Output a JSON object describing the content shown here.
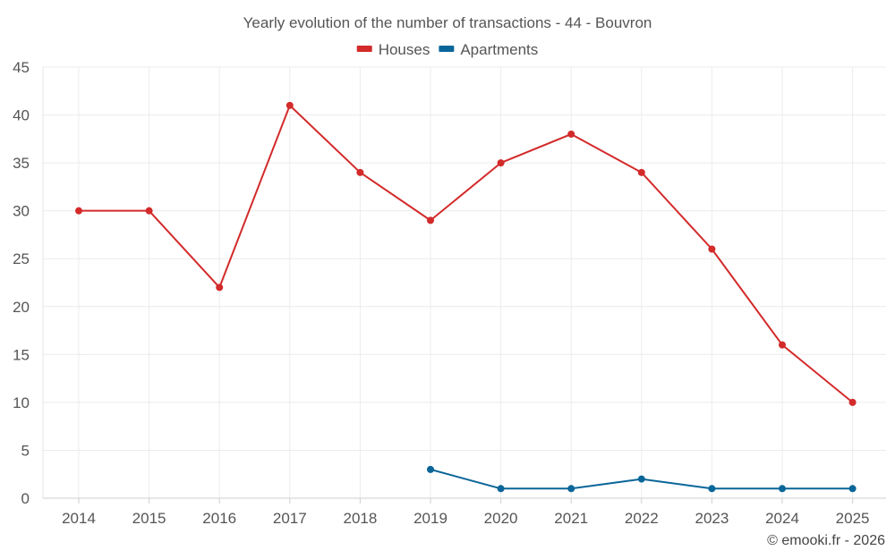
{
  "chart_data": {
    "type": "line",
    "title": "Yearly evolution of the number of transactions - 44 - Bouvron",
    "categories": [
      "2014",
      "2015",
      "2016",
      "2017",
      "2018",
      "2019",
      "2020",
      "2021",
      "2022",
      "2023",
      "2024",
      "2025"
    ],
    "series": [
      {
        "name": "Houses",
        "color": "#d32a2a",
        "values": [
          30,
          30,
          22,
          41,
          34,
          29,
          35,
          38,
          34,
          26,
          16,
          10
        ]
      },
      {
        "name": "Apartments",
        "color": "#0a6699",
        "values": [
          null,
          null,
          null,
          null,
          null,
          3,
          1,
          1,
          2,
          1,
          1,
          1
        ]
      }
    ],
    "ylim": [
      0,
      45
    ],
    "yticks": [
      0,
      5,
      10,
      15,
      20,
      25,
      30,
      35,
      40,
      45
    ],
    "xlabel": "",
    "ylabel": "",
    "legend": "top-center",
    "grid": true
  },
  "credit": "© emooki.fr - 2026"
}
